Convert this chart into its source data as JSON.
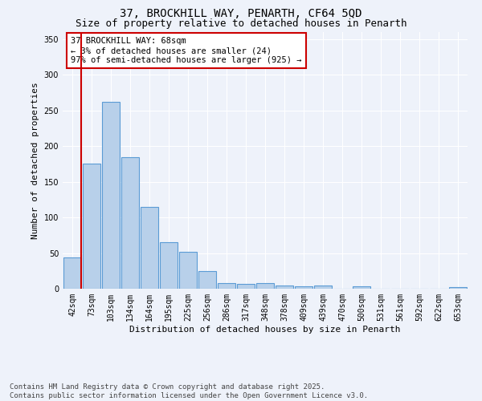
{
  "title1": "37, BROCKHILL WAY, PENARTH, CF64 5QD",
  "title2": "Size of property relative to detached houses in Penarth",
  "xlabel": "Distribution of detached houses by size in Penarth",
  "ylabel": "Number of detached properties",
  "categories": [
    "42sqm",
    "73sqm",
    "103sqm",
    "134sqm",
    "164sqm",
    "195sqm",
    "225sqm",
    "256sqm",
    "286sqm",
    "317sqm",
    "348sqm",
    "378sqm",
    "409sqm",
    "439sqm",
    "470sqm",
    "500sqm",
    "531sqm",
    "561sqm",
    "592sqm",
    "622sqm",
    "653sqm"
  ],
  "values": [
    44,
    175,
    262,
    184,
    115,
    65,
    52,
    25,
    8,
    7,
    8,
    5,
    3,
    5,
    0,
    3,
    0,
    0,
    0,
    0,
    2
  ],
  "bar_color": "#b8d0ea",
  "bar_edge_color": "#5b9bd5",
  "marker_color": "#cc0000",
  "annotation_text": "37 BROCKHILL WAY: 68sqm\n← 3% of detached houses are smaller (24)\n97% of semi-detached houses are larger (925) →",
  "annotation_box_color": "#ffffff",
  "annotation_box_edge_color": "#cc0000",
  "ylim": [
    0,
    360
  ],
  "yticks": [
    0,
    50,
    100,
    150,
    200,
    250,
    300,
    350
  ],
  "background_color": "#eef2fa",
  "grid_color": "#ffffff",
  "footer_text": "Contains HM Land Registry data © Crown copyright and database right 2025.\nContains public sector information licensed under the Open Government Licence v3.0.",
  "title_fontsize": 10,
  "subtitle_fontsize": 9,
  "axis_label_fontsize": 8,
  "tick_fontsize": 7,
  "annotation_fontsize": 7.5,
  "footer_fontsize": 6.5
}
